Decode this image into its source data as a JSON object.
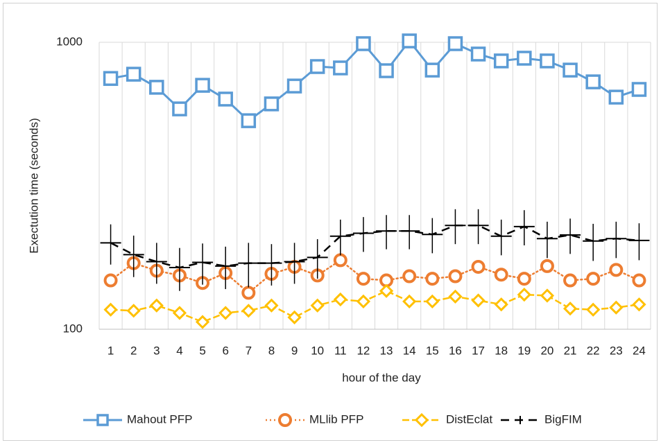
{
  "chart_data": {
    "type": "line",
    "x_label": "hour of the day",
    "y_label": "Exectution time (seconds)",
    "categories": [
      "1",
      "2",
      "3",
      "4",
      "5",
      "6",
      "7",
      "8",
      "9",
      "10",
      "11",
      "12",
      "13",
      "14",
      "15",
      "16",
      "17",
      "18",
      "19",
      "20",
      "21",
      "22",
      "23",
      "24"
    ],
    "ylim": [
      100,
      1000
    ],
    "yticks": [
      100,
      1000
    ],
    "ylog": true,
    "grid": true,
    "legend": "bottom",
    "series": [
      {
        "name": "Mahout PFP",
        "color": "#5b9bd5",
        "marker": "square",
        "line_style": "solid",
        "values": [
          748,
          774,
          697,
          586,
          708,
          634,
          533,
          610,
          704,
          823,
          814,
          989,
          796,
          1011,
          800,
          989,
          910,
          861,
          880,
          861,
          800,
          728,
          644,
          685
        ]
      },
      {
        "name": "MLlib PFP",
        "color": "#ed7d31",
        "marker": "circle",
        "line_style": "dotted",
        "values": [
          148,
          170,
          160,
          154,
          145,
          157,
          134,
          156,
          165,
          154,
          174,
          150,
          148,
          153,
          150,
          153,
          165,
          155,
          150,
          166,
          148,
          150,
          161,
          148
        ]
      },
      {
        "name": "DistEclat",
        "color": "#ffc000",
        "marker": "diamond",
        "line_style": "dashed",
        "values": [
          117,
          116,
          121,
          114,
          106,
          114,
          116,
          121,
          110,
          121,
          127,
          125,
          136,
          125,
          125,
          130,
          126,
          122,
          132,
          131,
          118,
          117,
          119,
          122
        ]
      },
      {
        "name": "BigFIM",
        "color": "#000000",
        "marker": "dash",
        "line_style": "longdash",
        "values": [
          200,
          182,
          172,
          164,
          171,
          166,
          170,
          170,
          172,
          178,
          211,
          216,
          220,
          220,
          214,
          230,
          230,
          211,
          228,
          207,
          213,
          203,
          207,
          204
        ],
        "errors": [
          32,
          30,
          28,
          28,
          28,
          28,
          30,
          28,
          28,
          28,
          30,
          30,
          30,
          30,
          30,
          32,
          32,
          30,
          32,
          30,
          30,
          30,
          30,
          30
        ]
      }
    ]
  }
}
